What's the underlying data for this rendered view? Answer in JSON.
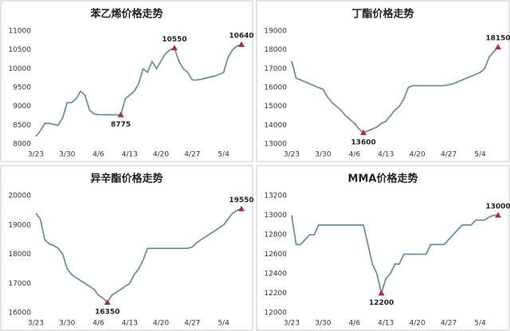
{
  "chart_data": [
    {
      "type": "line",
      "title": "苯乙烯价格走势",
      "color": "#6d91a3",
      "marker_color": "#b8283a",
      "categories": [
        "3/23",
        null,
        null,
        null,
        null,
        null,
        null,
        "3/30",
        null,
        null,
        null,
        null,
        null,
        null,
        "4/6",
        null,
        null,
        null,
        null,
        null,
        null,
        "4/13",
        null,
        null,
        null,
        null,
        null,
        null,
        "4/20",
        null,
        null,
        null,
        null,
        null,
        null,
        "4/27",
        null,
        null,
        null,
        null,
        null,
        null,
        "5/4",
        null,
        null,
        null,
        null
      ],
      "values": [
        8200,
        8350,
        8550,
        8550,
        8520,
        8500,
        8700,
        9100,
        9100,
        9200,
        9400,
        9300,
        8900,
        8800,
        8780,
        8775,
        8775,
        8775,
        8775,
        8775,
        9200,
        9300,
        9400,
        9600,
        10000,
        9900,
        10200,
        10000,
        10200,
        10400,
        10500,
        10550,
        10200,
        10000,
        9900,
        9700,
        9700,
        9720,
        9750,
        9780,
        9800,
        9850,
        9900,
        10300,
        10500,
        10600,
        10640
      ],
      "value_labels": [
        null,
        null,
        null,
        null,
        null,
        null,
        null,
        null,
        null,
        null,
        null,
        null,
        null,
        null,
        null,
        null,
        null,
        null,
        null,
        "8775",
        null,
        null,
        null,
        null,
        null,
        null,
        null,
        null,
        null,
        null,
        null,
        "10550",
        null,
        null,
        null,
        null,
        null,
        null,
        null,
        null,
        null,
        null,
        null,
        null,
        null,
        null,
        "10640"
      ],
      "ylim": [
        8000,
        11000
      ],
      "yticks": [
        8000,
        8500,
        9000,
        9500,
        10000,
        10500,
        11000
      ]
    },
    {
      "type": "line",
      "title": "丁酯价格走势",
      "color": "#6d91a3",
      "marker_color": "#b8283a",
      "categories": [
        "3/23",
        null,
        null,
        null,
        null,
        null,
        null,
        "3/30",
        null,
        null,
        null,
        null,
        null,
        null,
        "4/6",
        null,
        null,
        null,
        null,
        null,
        null,
        "4/13",
        null,
        null,
        null,
        null,
        null,
        null,
        "4/20",
        null,
        null,
        null,
        null,
        null,
        null,
        "4/27",
        null,
        null,
        null,
        null,
        null,
        null,
        "5/4",
        null,
        null,
        null,
        null
      ],
      "values": [
        17400,
        16500,
        16400,
        16300,
        16200,
        16100,
        16000,
        15900,
        15500,
        15200,
        15000,
        14800,
        14500,
        14300,
        14100,
        13800,
        13600,
        13700,
        13800,
        13900,
        14100,
        14200,
        14500,
        14800,
        15000,
        15400,
        16000,
        16100,
        16100,
        16100,
        16100,
        16100,
        16100,
        16100,
        16100,
        16150,
        16200,
        16300,
        16400,
        16500,
        16600,
        16700,
        16800,
        17000,
        17600,
        17900,
        18150
      ],
      "value_labels": [
        null,
        null,
        null,
        null,
        null,
        null,
        null,
        null,
        null,
        null,
        null,
        null,
        null,
        null,
        null,
        null,
        "13600",
        null,
        null,
        null,
        null,
        null,
        null,
        null,
        null,
        null,
        null,
        null,
        null,
        null,
        null,
        null,
        null,
        null,
        null,
        null,
        null,
        null,
        null,
        null,
        null,
        null,
        null,
        null,
        null,
        null,
        "18150"
      ],
      "ylim": [
        13000,
        19000
      ],
      "yticks": [
        13000,
        14000,
        15000,
        16000,
        17000,
        18000,
        19000
      ]
    },
    {
      "type": "line",
      "title": "异辛酯价格走势",
      "color": "#6d91a3",
      "marker_color": "#b8283a",
      "categories": [
        "3/23",
        null,
        null,
        null,
        null,
        null,
        null,
        "3/30",
        null,
        null,
        null,
        null,
        null,
        null,
        "4/6",
        null,
        null,
        null,
        null,
        null,
        null,
        "4/13",
        null,
        null,
        null,
        null,
        null,
        null,
        "4/20",
        null,
        null,
        null,
        null,
        null,
        null,
        "4/27",
        null,
        null,
        null,
        null,
        null,
        null,
        "5/4",
        null,
        null,
        null,
        null
      ],
      "values": [
        19400,
        19200,
        18500,
        18350,
        18300,
        18200,
        18000,
        17500,
        17300,
        17200,
        17100,
        17000,
        16900,
        16800,
        16600,
        16500,
        16350,
        16600,
        16700,
        16800,
        16900,
        17000,
        17300,
        17500,
        17800,
        18200,
        18200,
        18200,
        18200,
        18200,
        18200,
        18200,
        18200,
        18200,
        18200,
        18250,
        18400,
        18500,
        18600,
        18700,
        18800,
        18900,
        19000,
        19200,
        19400,
        19500,
        19550
      ],
      "value_labels": [
        null,
        null,
        null,
        null,
        null,
        null,
        null,
        null,
        null,
        null,
        null,
        null,
        null,
        null,
        null,
        null,
        "16350",
        null,
        null,
        null,
        null,
        null,
        null,
        null,
        null,
        null,
        null,
        null,
        null,
        null,
        null,
        null,
        null,
        null,
        null,
        null,
        null,
        null,
        null,
        null,
        null,
        null,
        null,
        null,
        null,
        null,
        "19550"
      ],
      "ylim": [
        16000,
        20000
      ],
      "yticks": [
        16000,
        17000,
        18000,
        19000,
        20000
      ]
    },
    {
      "type": "line",
      "title": "MMA价格走势",
      "color": "#6d91a3",
      "marker_color": "#b8283a",
      "categories": [
        "3/23",
        null,
        null,
        null,
        null,
        null,
        null,
        "3/30",
        null,
        null,
        null,
        null,
        null,
        null,
        "4/6",
        null,
        null,
        null,
        null,
        null,
        null,
        "4/13",
        null,
        null,
        null,
        null,
        null,
        null,
        "4/20",
        null,
        null,
        null,
        null,
        null,
        null,
        "4/27",
        null,
        null,
        null,
        null,
        null,
        null,
        "5/4",
        null,
        null,
        null,
        null
      ],
      "values": [
        13000,
        12700,
        12700,
        12750,
        12800,
        12800,
        12900,
        12900,
        12900,
        12900,
        12900,
        12900,
        12900,
        12900,
        12900,
        12900,
        12900,
        12700,
        12500,
        12400,
        12200,
        12350,
        12400,
        12500,
        12500,
        12600,
        12600,
        12600,
        12600,
        12600,
        12600,
        12700,
        12700,
        12700,
        12700,
        12750,
        12800,
        12850,
        12900,
        12900,
        12900,
        12950,
        12950,
        12950,
        12980,
        13000,
        13000
      ],
      "value_labels": [
        null,
        null,
        null,
        null,
        null,
        null,
        null,
        null,
        null,
        null,
        null,
        null,
        null,
        null,
        null,
        null,
        null,
        null,
        null,
        null,
        "12200",
        null,
        null,
        null,
        null,
        null,
        null,
        null,
        null,
        null,
        null,
        null,
        null,
        null,
        null,
        null,
        null,
        null,
        null,
        null,
        null,
        null,
        null,
        null,
        null,
        null,
        "13000"
      ],
      "ylim": [
        12000,
        13200
      ],
      "yticks": [
        12000,
        12200,
        12400,
        12600,
        12800,
        13000,
        13200
      ]
    }
  ]
}
